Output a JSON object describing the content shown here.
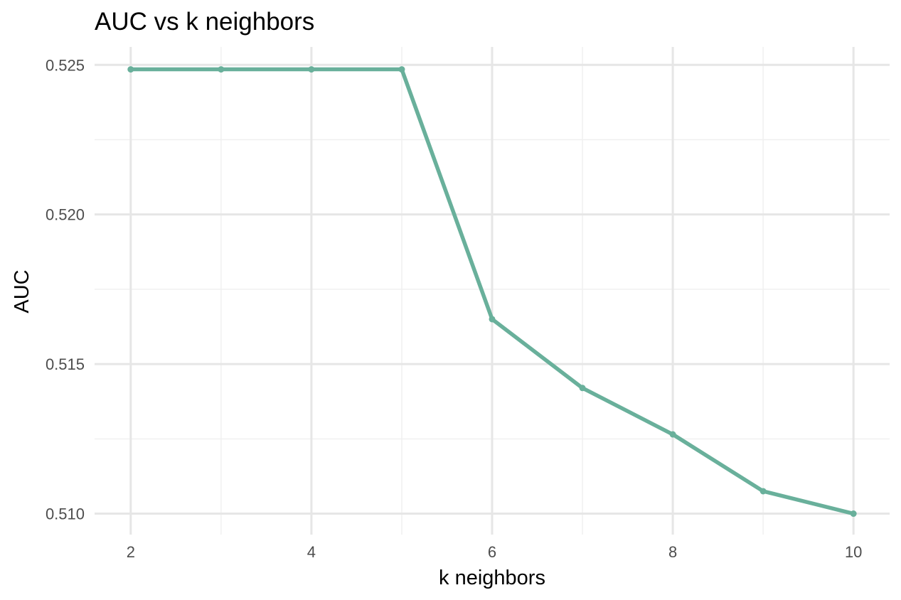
{
  "chart_data": {
    "type": "line",
    "title": "AUC vs k neighbors",
    "xlabel": "k neighbors",
    "ylabel": "AUC",
    "x": [
      2,
      3,
      4,
      5,
      6,
      7,
      8,
      9,
      10
    ],
    "series": [
      {
        "values": [
          0.52485,
          0.52485,
          0.52485,
          0.52485,
          0.5165,
          0.5142,
          0.51265,
          0.51075,
          0.51
        ]
      }
    ],
    "xlim": [
      1.6,
      10.4
    ],
    "ylim": [
      0.5093,
      0.5256
    ],
    "x_ticks": [
      2,
      4,
      6,
      8,
      10
    ],
    "x_tick_labels": [
      "2",
      "4",
      "6",
      "8",
      "10"
    ],
    "x_minor_ticks": [
      3,
      5,
      7,
      9
    ],
    "y_ticks": [
      0.51,
      0.515,
      0.52,
      0.525
    ],
    "y_tick_labels": [
      "0.510",
      "0.515",
      "0.520",
      "0.525"
    ],
    "y_minor_ticks": [
      0.5125,
      0.5175,
      0.5225
    ],
    "grid": true,
    "legend": "none",
    "colors": {
      "line": "#69b09b",
      "grid_major": "#e6e6e6",
      "grid_minor": "#f0f0f0",
      "background": "#ffffff"
    }
  }
}
